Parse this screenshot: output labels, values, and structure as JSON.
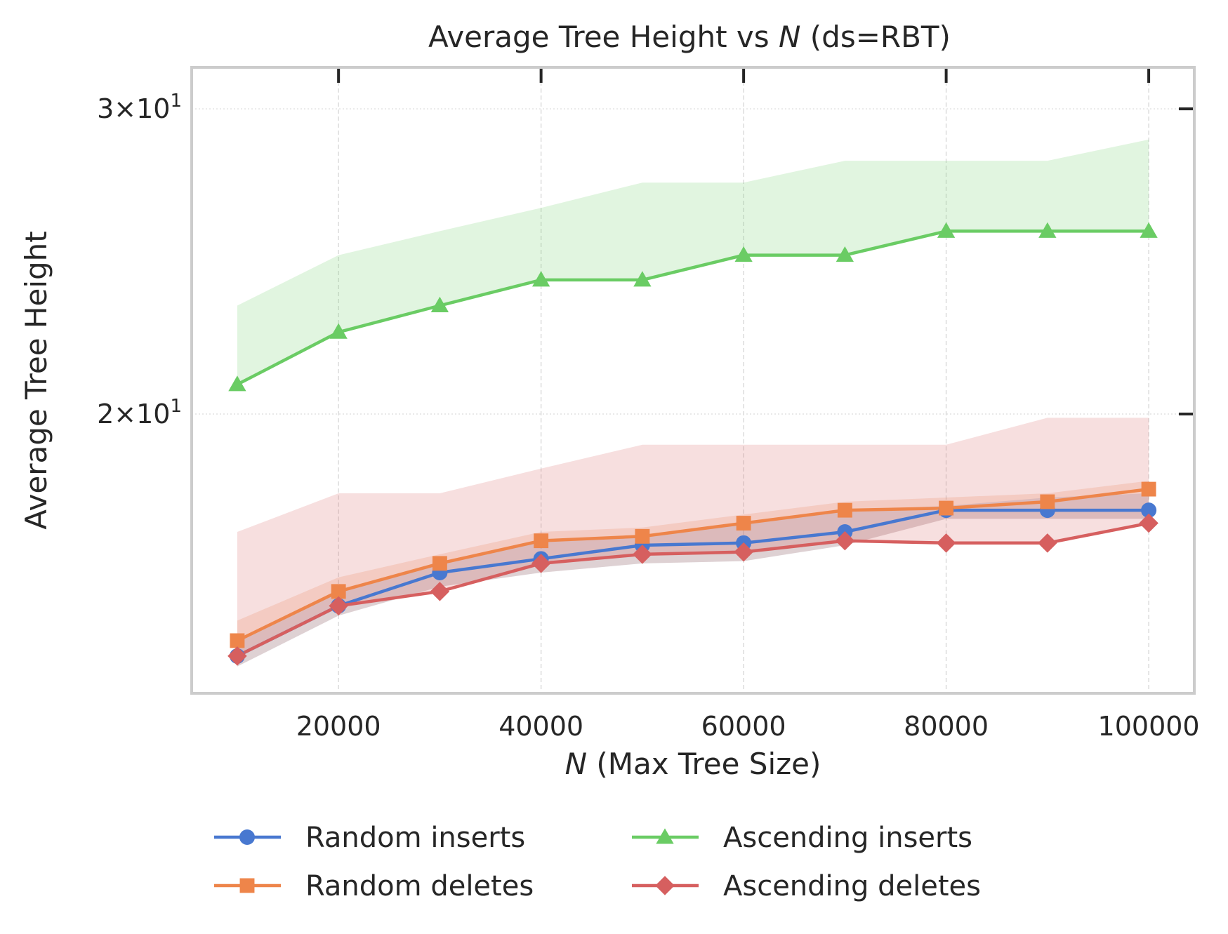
{
  "chart_data": {
    "type": "line",
    "title": "Average Tree Height vs N (ds=RBT)",
    "title_parts": [
      "Average Tree Height vs ",
      "N",
      " (ds=RBT)"
    ],
    "xlabel": "N (Max Tree Size)",
    "xlabel_parts": [
      "N",
      " (Max Tree Size)"
    ],
    "ylabel": "Average Tree Height",
    "yscale": "log",
    "xlim": [
      5500,
      104500
    ],
    "ylim": [
      13.8,
      31.7
    ],
    "x_ticks": [
      20000,
      40000,
      60000,
      80000,
      100000
    ],
    "x_tick_labels": [
      "20000",
      "40000",
      "60000",
      "80000",
      "100000"
    ],
    "y_ticks": [
      {
        "value": 20,
        "base": "2",
        "exp": "1"
      },
      {
        "value": 30,
        "base": "3",
        "exp": "1"
      }
    ],
    "grid": true,
    "legend_placement": "below",
    "x": [
      10000,
      20000,
      30000,
      40000,
      50000,
      60000,
      70000,
      80000,
      90000,
      100000
    ],
    "series": [
      {
        "name": "Random inserts",
        "color": "#4878d0",
        "marker": "circle",
        "values": [
          14.5,
          15.5,
          16.2,
          16.5,
          16.8,
          16.85,
          17.1,
          17.6,
          17.6,
          17.6
        ],
        "band_low": [
          14.3,
          15.3,
          15.9,
          16.2,
          16.4,
          16.45,
          16.8,
          17.4,
          17.4,
          17.4
        ],
        "band_high": [
          14.8,
          15.8,
          16.4,
          16.9,
          17.0,
          17.3,
          17.6,
          17.7,
          17.9,
          18.0
        ]
      },
      {
        "name": "Random deletes",
        "color": "#ee854a",
        "marker": "square",
        "values": [
          14.8,
          15.8,
          16.4,
          16.9,
          17.0,
          17.3,
          17.6,
          17.65,
          17.8,
          18.1
        ],
        "band_low": [
          14.3,
          15.3,
          15.9,
          16.2,
          16.4,
          16.45,
          16.8,
          17.4,
          17.4,
          17.4
        ],
        "band_high": [
          15.2,
          16.1,
          16.6,
          17.1,
          17.2,
          17.5,
          17.8,
          17.9,
          18.0,
          18.3
        ]
      },
      {
        "name": "Ascending inserts",
        "color": "#6acc64",
        "marker": "triangle",
        "values": [
          20.8,
          22.3,
          23.1,
          23.9,
          23.9,
          24.7,
          24.7,
          25.5,
          25.5,
          25.5
        ],
        "band_low": [
          20.8,
          22.3,
          23.1,
          23.9,
          23.9,
          24.7,
          24.7,
          25.5,
          25.5,
          25.5
        ],
        "band_high": [
          23.1,
          24.7,
          25.5,
          26.3,
          27.2,
          27.2,
          28.0,
          28.0,
          28.0,
          28.8
        ]
      },
      {
        "name": "Ascending deletes",
        "color": "#d65f5f",
        "marker": "diamond",
        "values": [
          14.5,
          15.5,
          15.8,
          16.4,
          16.6,
          16.65,
          16.9,
          16.85,
          16.85,
          17.3
        ],
        "band_low": [
          14.5,
          15.5,
          15.8,
          16.4,
          16.6,
          16.65,
          16.9,
          16.85,
          16.85,
          17.3
        ],
        "band_high": [
          17.1,
          18.0,
          18.0,
          18.6,
          19.2,
          19.2,
          19.2,
          19.2,
          19.9,
          19.9
        ]
      }
    ]
  }
}
